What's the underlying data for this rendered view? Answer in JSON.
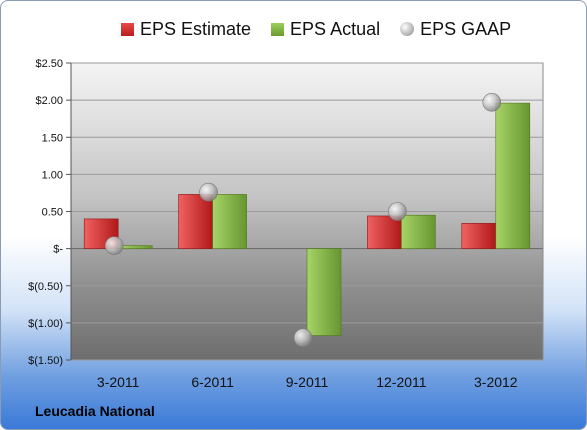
{
  "legend": {
    "estimate": "EPS Estimate",
    "actual": "EPS Actual",
    "gaap": "EPS GAAP"
  },
  "company": "Leucadia National",
  "colors": {
    "estimate": "#d42b2b",
    "actual": "#86b845",
    "gaap": "#b8b8b8"
  },
  "chart_data": {
    "type": "bar",
    "categories": [
      "3-2011",
      "6-2011",
      "9-2011",
      "12-2011",
      "3-2012"
    ],
    "series": [
      {
        "name": "EPS Estimate",
        "type": "bar",
        "values": [
          0.4,
          0.73,
          null,
          0.44,
          0.34
        ]
      },
      {
        "name": "EPS Actual",
        "type": "bar",
        "values": [
          0.04,
          0.73,
          -1.17,
          0.45,
          1.96
        ]
      },
      {
        "name": "EPS GAAP",
        "type": "scatter",
        "values": [
          0.04,
          0.76,
          -1.2,
          0.5,
          1.97
        ]
      }
    ],
    "ylim": [
      -1.5,
      2.5
    ],
    "yticks": [
      2.5,
      2.0,
      1.5,
      1.0,
      0.5,
      0,
      -0.5,
      -1.0,
      -1.5
    ],
    "ytick_labels": [
      "$2.50",
      "$2.00",
      "1.50",
      "1.00",
      "0.50",
      "$-",
      "$(0.50)",
      "$(1.00)",
      "$(1.50)"
    ],
    "grid": true,
    "legend_position": "top"
  }
}
